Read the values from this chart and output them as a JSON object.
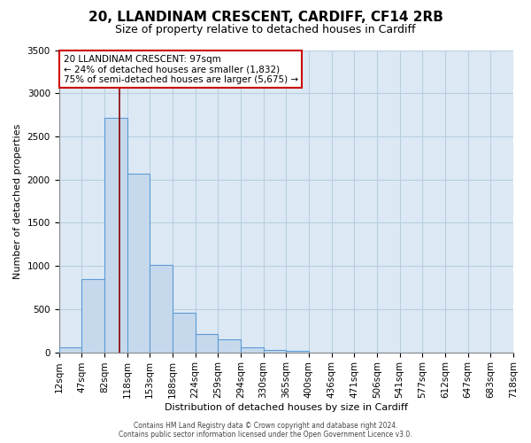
{
  "title1": "20, LLANDINAM CRESCENT, CARDIFF, CF14 2RB",
  "title2": "Size of property relative to detached houses in Cardiff",
  "xlabel": "Distribution of detached houses by size in Cardiff",
  "ylabel": "Number of detached properties",
  "bar_values": [
    55,
    850,
    2720,
    2070,
    1010,
    455,
    210,
    145,
    55,
    30,
    20,
    0,
    0,
    0,
    0,
    0,
    0,
    0,
    0,
    0
  ],
  "bar_labels": [
    "12sqm",
    "47sqm",
    "82sqm",
    "118sqm",
    "153sqm",
    "188sqm",
    "224sqm",
    "259sqm",
    "294sqm",
    "330sqm",
    "365sqm",
    "400sqm",
    "436sqm",
    "471sqm",
    "506sqm",
    "541sqm",
    "577sqm",
    "612sqm",
    "647sqm",
    "683sqm",
    "718sqm"
  ],
  "bar_color": "#c6d9ec",
  "bar_edge_color": "#5b9bd5",
  "vline_color": "#8b0000",
  "vline_x": 2.15,
  "ylim": [
    0,
    3500
  ],
  "yticks": [
    0,
    500,
    1000,
    1500,
    2000,
    2500,
    3000,
    3500
  ],
  "annotation_line1": "20 LLANDINAM CRESCENT: 97sqm",
  "annotation_line2": "← 24% of detached houses are smaller (1,832)",
  "annotation_line3": "75% of semi-detached houses are larger (5,675) →",
  "footer1": "Contains HM Land Registry data © Crown copyright and database right 2024.",
  "footer2": "Contains public sector information licensed under the Open Government Licence v3.0.",
  "fig_bg_color": "#ffffff",
  "plot_bg_color": "#dce9f5",
  "grid_color": "#b8cfe0",
  "title1_fontsize": 11,
  "title2_fontsize": 9,
  "ylabel_fontsize": 8,
  "xlabel_fontsize": 8,
  "tick_fontsize": 7.5,
  "annotation_fontsize": 7.5,
  "footer_fontsize": 5.5
}
